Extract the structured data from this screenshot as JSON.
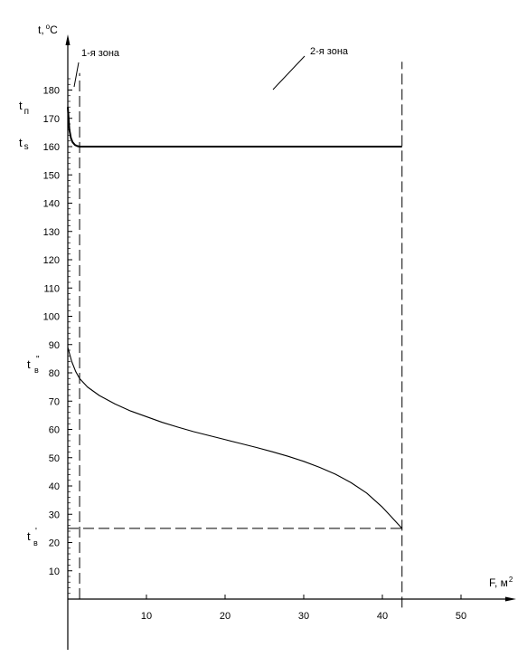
{
  "chart_data": {
    "type": "line",
    "title": "",
    "xlabel": "F, м",
    "xlabel_exponent": "2",
    "ylabel": "t,",
    "ylabel_degree": "o",
    "ylabel_unit": "C",
    "xlim": [
      0,
      55
    ],
    "ylim": [
      0,
      190
    ],
    "x_ticks": [
      10,
      20,
      30,
      40,
      50
    ],
    "y_ticks": [
      10,
      20,
      30,
      40,
      50,
      60,
      70,
      80,
      90,
      100,
      110,
      120,
      130,
      140,
      150,
      160,
      170,
      180
    ],
    "grid": false,
    "legend": "none",
    "series": [
      {
        "style": "thick",
        "x": [
          0.0,
          0.2,
          0.4,
          0.6,
          0.9,
          1.2,
          1.5,
          42.5
        ],
        "y": [
          174,
          166,
          163,
          161.6,
          160.6,
          160.2,
          160,
          160
        ]
      },
      {
        "style": "thin",
        "x": [
          0.0,
          0.5,
          1.0,
          1.5,
          2.5,
          4,
          6,
          8,
          10,
          12,
          14,
          16,
          18,
          20,
          22,
          24,
          26,
          28,
          30,
          32,
          34,
          36,
          38,
          40,
          41,
          42,
          42.5
        ],
        "y": [
          89,
          84,
          80.5,
          78,
          75,
          72,
          69,
          66.5,
          64.5,
          62.5,
          60.8,
          59.2,
          57.8,
          56.4,
          55,
          53.6,
          52.1,
          50.5,
          48.7,
          46.6,
          44.2,
          41.2,
          37.5,
          32.5,
          29.5,
          26.5,
          25
        ]
      }
    ],
    "reference_lines": [
      {
        "orientation": "vertical",
        "x": 1.5,
        "from": 0,
        "to": 186
      },
      {
        "orientation": "vertical",
        "x": 42.5,
        "from": -3,
        "to": 190
      },
      {
        "orientation": "horizontal",
        "y": 25,
        "from": 0,
        "to": 42.5
      }
    ],
    "labels": [
      {
        "id": "t-p",
        "main": "t",
        "sub": "п"
      },
      {
        "id": "t-s",
        "main": "t",
        "sub": "s"
      },
      {
        "id": "t-v-pp",
        "main": "t",
        "sub": "в",
        "sup": "\""
      },
      {
        "id": "t-v-p",
        "main": "t",
        "sub": "в",
        "sup": "'"
      }
    ],
    "annotations": [
      {
        "id": "zone-1",
        "text": "1-я зона"
      },
      {
        "id": "zone-2",
        "text": "2-я  зона"
      }
    ]
  }
}
